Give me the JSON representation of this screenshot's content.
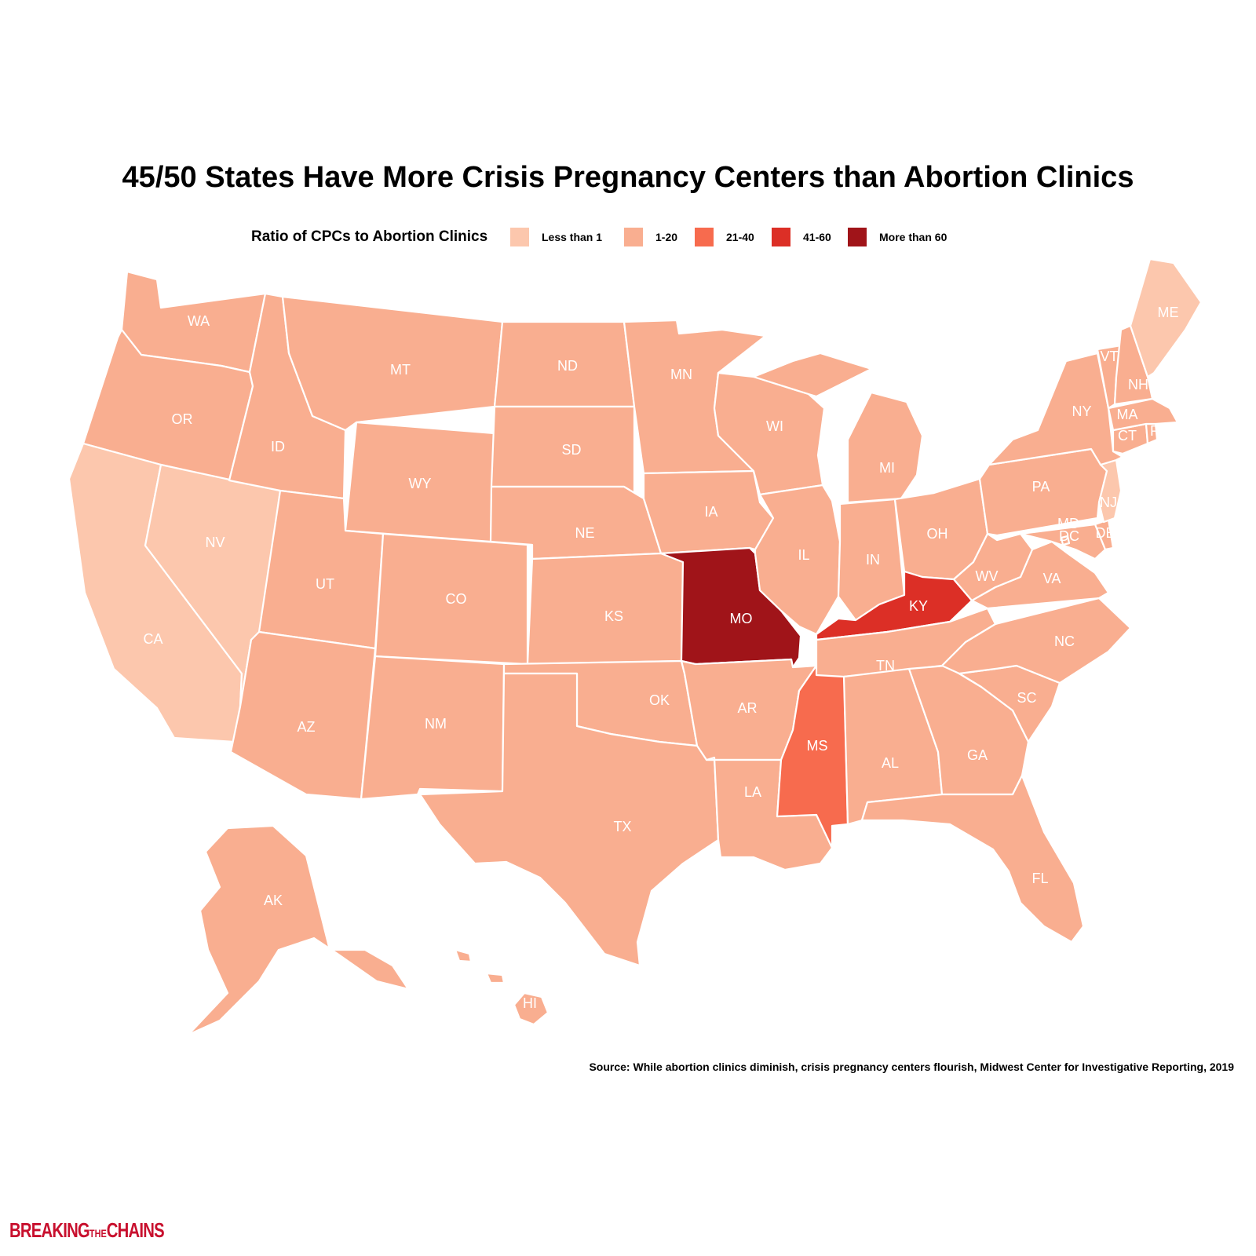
{
  "title": "45/50 States Have More Crisis Pregnancy Centers than Abortion Clinics",
  "legend": {
    "title": "Ratio of CPCs to Abortion Clinics",
    "items": [
      {
        "label": "Less than 1",
        "color": "#fcc7ad"
      },
      {
        "label": "1-20",
        "color": "#f9ae90"
      },
      {
        "label": "21-40",
        "color": "#f76b4e"
      },
      {
        "label": "41-60",
        "color": "#dc2f26"
      },
      {
        "label": "More than 60",
        "color": "#a01419"
      }
    ]
  },
  "states": {
    "WA": "1-20",
    "OR": "1-20",
    "CA": "Less than 1",
    "NV": "Less than 1",
    "ID": "1-20",
    "MT": "1-20",
    "WY": "1-20",
    "UT": "1-20",
    "AZ": "1-20",
    "CO": "1-20",
    "NM": "1-20",
    "ND": "1-20",
    "SD": "1-20",
    "NE": "1-20",
    "KS": "1-20",
    "OK": "1-20",
    "TX": "1-20",
    "MN": "1-20",
    "IA": "1-20",
    "MO": "More than 60",
    "AR": "1-20",
    "LA": "1-20",
    "WI": "1-20",
    "IL": "1-20",
    "MS": "21-40",
    "MI": "1-20",
    "IN": "1-20",
    "KY": "41-60",
    "TN": "1-20",
    "AL": "1-20",
    "OH": "1-20",
    "WV": "1-20",
    "VA": "1-20",
    "NC": "1-20",
    "SC": "1-20",
    "GA": "1-20",
    "FL": "1-20",
    "PA": "1-20",
    "NY": "1-20",
    "NJ": "Less than 1",
    "DE": "1-20",
    "MD": "1-20",
    "DC": "1-20",
    "CT": "1-20",
    "RI": "1-20",
    "MA": "1-20",
    "VT": "1-20",
    "NH": "1-20",
    "ME": "Less than 1",
    "AK": "1-20",
    "HI": "1-20"
  },
  "source": "Source: While abortion clinics diminish, crisis pregnancy centers flourish, Midwest Center for Investigative Reporting, 2019",
  "logo": {
    "text": "BREAKING THE CHAINS"
  }
}
